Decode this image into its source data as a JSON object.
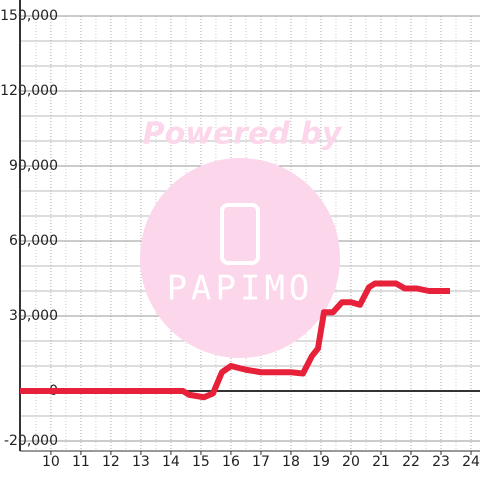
{
  "chart_data": {
    "type": "line",
    "x": [
      8.97,
      14.4,
      14.6,
      15.1,
      15.4,
      15.7,
      16.0,
      16.5,
      17.0,
      18.0,
      18.4,
      18.7,
      18.9,
      19.1,
      19.4,
      19.7,
      20.0,
      20.3,
      20.6,
      20.8,
      21.5,
      21.8,
      22.2,
      22.6,
      23.3
    ],
    "series": [
      {
        "color": "#e8213a",
        "values": [
          0,
          0,
          -1500,
          -2500,
          -1000,
          7500,
          10000,
          8500,
          7500,
          7500,
          7000,
          14000,
          17000,
          31500,
          31500,
          35500,
          35500,
          34500,
          41500,
          43000,
          43000,
          41000,
          41000,
          40000,
          40000
        ]
      }
    ],
    "xlim": [
      8.97,
      24.3
    ],
    "xticks": [
      10,
      11,
      12,
      13,
      14,
      15,
      16,
      17,
      18,
      19,
      20,
      21,
      22,
      23,
      24
    ],
    "minor_xticks": [
      9.5,
      10.5,
      11.5,
      12.5,
      13.5,
      14.5,
      15.5,
      16.5,
      17.5,
      18.5,
      19.5,
      20.5,
      21.5,
      22.5,
      23.5
    ],
    "ylim": [
      -24000,
      150000
    ],
    "yticks": [
      {
        "value": -20000,
        "label": "-20,000"
      },
      0,
      {
        "value": 30000,
        "label": "30,000"
      },
      {
        "value": 60000,
        "label": "60,000"
      },
      {
        "value": 90000,
        "label": "90,000"
      },
      {
        "value": 120000,
        "label": "120,000"
      },
      {
        "value": 150000,
        "label": "150,000"
      }
    ],
    "minor_yticks": [
      -10000,
      10000,
      20000,
      40000,
      50000,
      70000,
      80000,
      100000,
      110000,
      130000,
      140000
    ],
    "grid": true,
    "watermark": {
      "text": "Powered by",
      "logo": "PAPIMO"
    }
  }
}
